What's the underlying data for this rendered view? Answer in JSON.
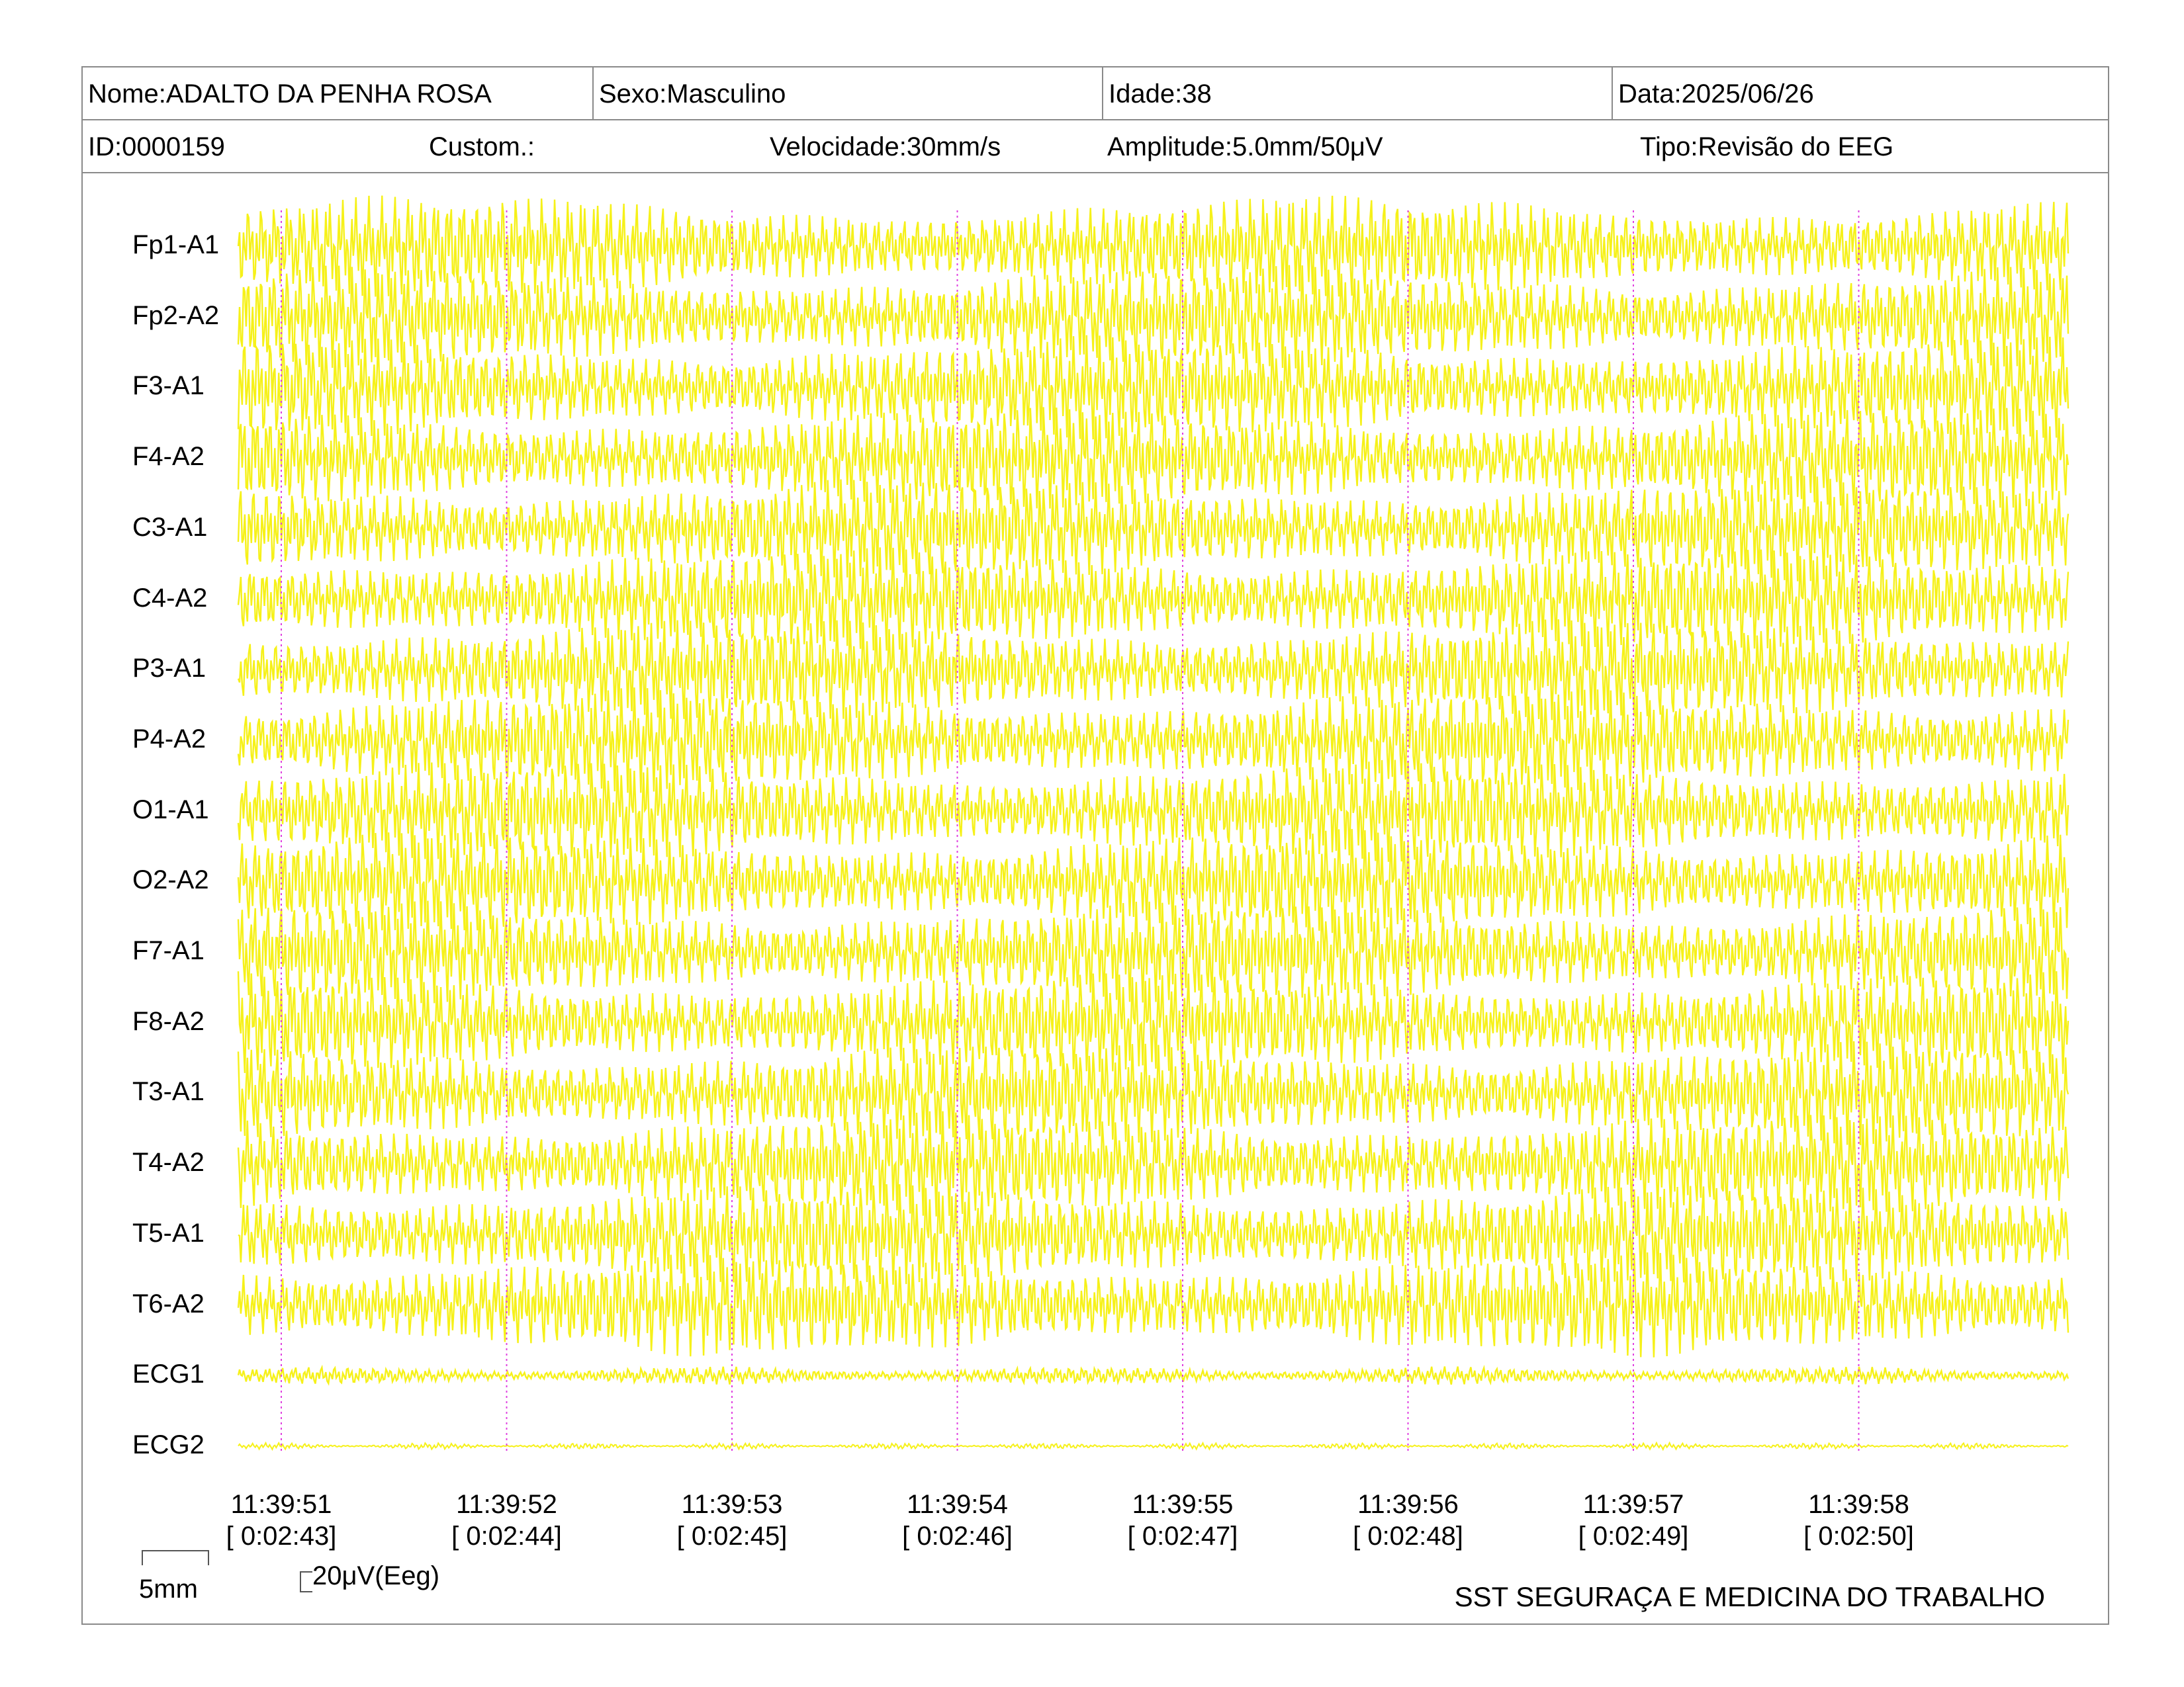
{
  "header": {
    "name": "Nome:ADALTO DA PENHA ROSA",
    "sex": "Sexo:Masculino",
    "age": "Idade:38",
    "date": "Data:2025/06/26",
    "id": "ID:0000159",
    "custom": "Custom.:",
    "speed": "Velocidade:30mm/s",
    "amplitude": "Amplitude:5.0mm/50μV",
    "type": "Tipo:Revisão do EEG"
  },
  "channels": [
    "Fp1-A1",
    "Fp2-A2",
    "F3-A1",
    "F4-A2",
    "C3-A1",
    "C4-A2",
    "P3-A1",
    "P4-A2",
    "O1-A1",
    "O2-A2",
    "F7-A1",
    "F8-A2",
    "T3-A1",
    "T4-A2",
    "T5-A1",
    "T6-A2",
    "ECG1",
    "ECG2"
  ],
  "time_markers": [
    {
      "clock": "11:39:51",
      "elapsed": "[ 0:02:43]"
    },
    {
      "clock": "11:39:52",
      "elapsed": "[ 0:02:44]"
    },
    {
      "clock": "11:39:53",
      "elapsed": "[ 0:02:45]"
    },
    {
      "clock": "11:39:54",
      "elapsed": "[ 0:02:46]"
    },
    {
      "clock": "11:39:55",
      "elapsed": "[ 0:02:47]"
    },
    {
      "clock": "11:39:56",
      "elapsed": "[ 0:02:48]"
    },
    {
      "clock": "11:39:57",
      "elapsed": "[ 0:02:49]"
    },
    {
      "clock": "11:39:58",
      "elapsed": "[ 0:02:50]"
    }
  ],
  "scale": {
    "time_scale": "5mm",
    "amp_scale": "20μV(Eeg)"
  },
  "company": "SST SEGURAÇA E MEDICINA DO TRABALHO",
  "colors": {
    "trace": "#f5f000",
    "marker": "#e040e0",
    "border": "#8a8a8a"
  }
}
